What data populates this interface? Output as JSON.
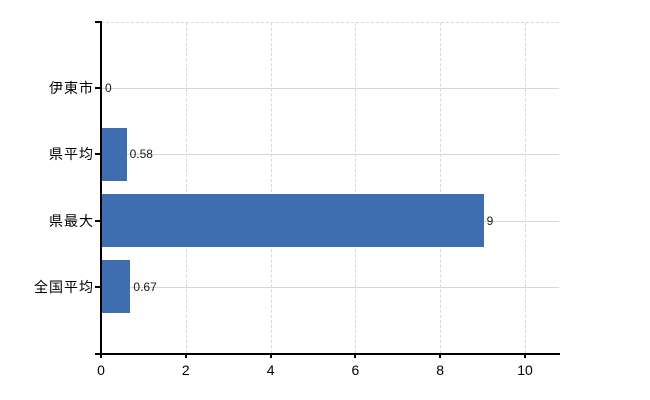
{
  "chart_data": {
    "type": "bar",
    "orientation": "horizontal",
    "title": "",
    "categories": [
      "伊東市",
      "県平均",
      "県最大",
      "全国平均"
    ],
    "values": [
      0,
      0.58,
      9,
      0.67
    ],
    "value_labels": [
      "0",
      "0.58",
      "9",
      "0.67"
    ],
    "x_axis": {
      "ticks": [
        0,
        2,
        4,
        6,
        8,
        10
      ],
      "tick_labels": [
        "0",
        "2",
        "4",
        "6",
        "8",
        "10"
      ],
      "range": [
        0,
        10.8
      ]
    },
    "grid": true,
    "gridline_style": {
      "vertical": "dashed",
      "horizontal": "solid",
      "top_border": "dashed"
    },
    "legend": false,
    "colors": {
      "bar": "#3e6eb0",
      "grid": "#d5d9d5",
      "axis": "#000000",
      "text": "#1a1a1a",
      "background": "#ffffff"
    }
  }
}
